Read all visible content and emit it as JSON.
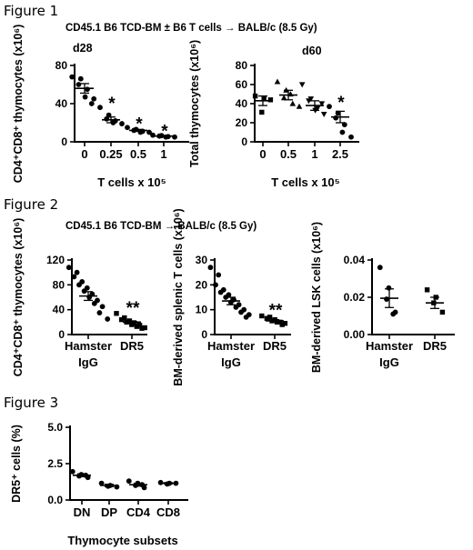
{
  "figure1": {
    "label": "Figure 1",
    "subtitle": "CD45.1 B6 TCD-BM ± B6 T cells → BALB/c (8.5 Gy)"
  },
  "figure2": {
    "label": "Figure 2",
    "subtitle": "CD45.1 B6 TCD-BM → BALB/c (8.5 Gy)"
  },
  "figure3": {
    "label": "Figure 3"
  },
  "chart_data": [
    {
      "type": "scatter",
      "panel_label": "d28",
      "ylabel": "CD4⁺CD8⁺ thymocytes (x10⁶)",
      "xlabel": "T cells x 10⁵",
      "categories": [
        "0",
        "0.25",
        "0.5",
        "1"
      ],
      "ylim": [
        0,
        80
      ],
      "yticks": [
        0,
        40,
        80
      ],
      "means": [
        56,
        23,
        12,
        6
      ],
      "sems": [
        5,
        3,
        1,
        0.6
      ],
      "significance": [
        "",
        "*",
        "*",
        "*"
      ],
      "points": [
        [
          68,
          66,
          60,
          55,
          47,
          45,
          40
        ],
        [
          36,
          28,
          24,
          22,
          20,
          19
        ],
        [
          15,
          13,
          12,
          11,
          10,
          10
        ],
        [
          7,
          6.5,
          6,
          5.5,
          5,
          5
        ]
      ]
    },
    {
      "type": "scatter",
      "panel_label": "d60",
      "ylabel": "Total thymocytes (x10⁶)",
      "xlabel": "T cells x 10⁵",
      "categories": [
        "0",
        "0.5",
        "1",
        "2.5"
      ],
      "ylim": [
        0,
        80
      ],
      "yticks": [
        0,
        20,
        40,
        60,
        80
      ],
      "means": [
        43,
        49,
        38,
        26
      ],
      "sems": [
        5,
        5,
        5,
        6
      ],
      "significance": [
        "",
        "",
        "",
        "*"
      ],
      "points": [
        [
          48,
          45,
          31,
          44
        ],
        [
          63,
          54,
          46,
          40,
          50,
          37
        ],
        [
          60,
          45,
          43,
          35,
          33,
          29,
          40
        ],
        [
          37,
          30,
          25,
          18,
          10,
          5
        ]
      ]
    },
    {
      "type": "scatter",
      "ylabel": "CD4⁺CD8⁺ thymocytes (x10⁶)",
      "categories": [
        "Hamster IgG",
        "DR5"
      ],
      "ylim": [
        0,
        120
      ],
      "yticks": [
        0,
        40,
        80,
        120
      ],
      "means": [
        62,
        20
      ],
      "sems": [
        7,
        2
      ],
      "significance": [
        "",
        "**"
      ],
      "points": [
        [
          108,
          100,
          93,
          85,
          80,
          75,
          70,
          65,
          60,
          55,
          50,
          45,
          35,
          25
        ],
        [
          34,
          27,
          24,
          22,
          20,
          18,
          16,
          15,
          13,
          11,
          10
        ]
      ]
    },
    {
      "type": "scatter",
      "ylabel": "BM-derived splenic T cells (x10⁶)",
      "categories": [
        "Hamster IgG",
        "DR5"
      ],
      "ylim": [
        0,
        30
      ],
      "yticks": [
        0,
        10,
        20,
        30
      ],
      "means": [
        13.5,
        5.5
      ],
      "sems": [
        1.5,
        0.5
      ],
      "significance": [
        "",
        "**"
      ],
      "points": [
        [
          27,
          24,
          20,
          18,
          17,
          16,
          15,
          14,
          13,
          12,
          11,
          10,
          9,
          8,
          7
        ],
        [
          7.5,
          7,
          6.5,
          6,
          5.5,
          5,
          5,
          4.5,
          4
        ]
      ]
    },
    {
      "type": "scatter",
      "ylabel": "BM-derived LSK cells (x10⁶)",
      "categories": [
        "Hamster IgG",
        "DR5"
      ],
      "ylim": [
        0,
        0.04
      ],
      "yticks": [
        "0.00",
        "0.02",
        "0.04"
      ],
      "means": [
        0.0195,
        0.017
      ],
      "sems": [
        0.005,
        0.003
      ],
      "significance": [
        "",
        ""
      ],
      "points": [
        [
          0.036,
          0.025,
          0.019,
          0.012,
          0.011
        ],
        [
          0.024,
          0.02,
          0.017,
          0.012
        ]
      ]
    },
    {
      "type": "scatter",
      "ylabel": "DR5⁺ cells (%)",
      "xlabel": "Thymocyte subsets",
      "categories": [
        "DN",
        "DP",
        "CD4",
        "CD8"
      ],
      "ylim": [
        0,
        5
      ],
      "yticks": [
        "0.0",
        "2.5",
        "5.0"
      ],
      "means": [
        1.7,
        1.0,
        1.05,
        1.15
      ],
      "sems": [
        0.1,
        0.08,
        0.1,
        0.04
      ],
      "significance": [
        "",
        "",
        "",
        ""
      ],
      "points": [
        [
          1.95,
          1.75,
          1.65,
          1.55,
          1.7
        ],
        [
          1.15,
          1.0,
          0.95,
          0.9
        ],
        [
          1.3,
          1.15,
          1.0,
          0.85,
          1.05
        ],
        [
          1.2,
          1.15,
          1.1,
          1.15
        ]
      ]
    }
  ]
}
